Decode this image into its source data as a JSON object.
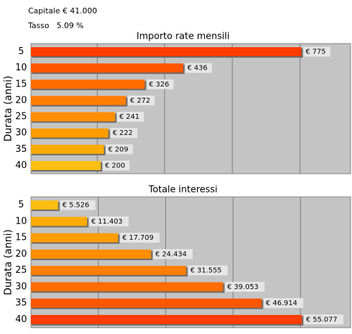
{
  "header": {
    "capitale": "Capitale € 41.000",
    "tasso": "Tasso   5.09 %"
  },
  "chart_data": [
    {
      "type": "bar",
      "orientation": "horizontal",
      "title": "Importo rate mensili",
      "y_label": "Durata (anni)",
      "categories": [
        "5",
        "10",
        "15",
        "20",
        "25",
        "30",
        "35",
        "40"
      ],
      "values": [
        775,
        436,
        326,
        272,
        241,
        222,
        209,
        200
      ],
      "value_labels": [
        "€ 775",
        "€ 436",
        "€ 326",
        "€ 272",
        "€ 241",
        "€ 222",
        "€ 209",
        "€ 200"
      ],
      "colors": [
        "#ff3c00",
        "#ff5600",
        "#ff6c00",
        "#ff7e00",
        "#ff8e00",
        "#ff9c00",
        "#ffab00",
        "#ffbe10"
      ],
      "xlim": [
        0,
        916
      ],
      "xticks": [
        190,
        383,
        577,
        771
      ],
      "grid": true
    },
    {
      "type": "bar",
      "orientation": "horizontal",
      "title": "Totale interessi",
      "y_label": "Durata (anni)",
      "categories": [
        "5",
        "10",
        "15",
        "20",
        "25",
        "30",
        "35",
        "40"
      ],
      "values": [
        5526,
        11403,
        17709,
        24434,
        31555,
        39053,
        46914,
        55077
      ],
      "value_labels": [
        "€ 5.526",
        "€ 11.403",
        "€ 17.709",
        "€ 24.434",
        "€ 31.555",
        "€ 39.053",
        "€ 46.914",
        "€ 55.077"
      ],
      "colors": [
        "#ffbe10",
        "#ffab00",
        "#ff9c00",
        "#ff8e00",
        "#ff7e00",
        "#ff6c00",
        "#ff5600",
        "#ff3c00"
      ],
      "xlim": [
        0,
        65000
      ],
      "xticks": [
        13700,
        27400,
        41100,
        54800
      ],
      "grid": true
    }
  ]
}
